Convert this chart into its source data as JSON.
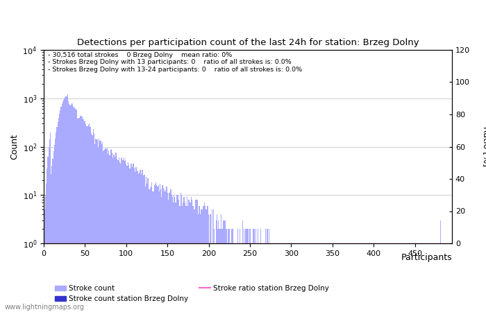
{
  "title": "Detections per participation count of the last 24h for station: Brzeg Dolny",
  "xlabel": "Participants",
  "ylabel_left": "Count",
  "ylabel_right": "Ratio [%]",
  "annotation_lines": [
    "30,516 total strokes    0 Brzeg Dolny    mean ratio: 0%",
    "Strokes Brzeg Dolny with 13 participants: 0    ratio of all strokes is: 0.0%",
    "Strokes Brzeg Dolny with 13-24 participants: 0    ratio of all strokes is: 0.0%"
  ],
  "bar_color_main": "#aaaaff",
  "bar_color_station": "#3333cc",
  "ratio_line_color": "#ff66cc",
  "background_color": "#ffffff",
  "grid_color": "#bbbbbb",
  "watermark": "www.lightningmaps.org",
  "xlim": [
    0,
    495
  ],
  "ylim_log_min": 1,
  "ylim_log_max": 10000,
  "ylim_ratio": [
    0,
    120
  ],
  "yticks_ratio": [
    0,
    20,
    40,
    60,
    80,
    100,
    120
  ],
  "xticks": [
    0,
    50,
    100,
    150,
    200,
    250,
    300,
    350,
    400,
    450
  ]
}
